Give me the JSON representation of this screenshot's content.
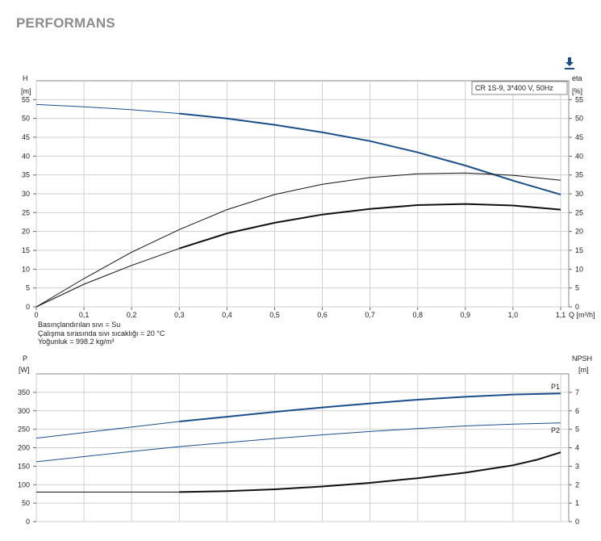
{
  "page": {
    "title": "PERFORMANS",
    "download_icon": "download-arrow-icon",
    "accent": "#1a4f8a"
  },
  "fluid_info": {
    "liquid": "Basınçlandırılan sıvı = Su",
    "temperature": "Çalışma sırasında sıvı sıcaklığı = 20 °C",
    "density": "Yoğunluk = 998.2 kg/m³"
  },
  "chart_data": [
    {
      "type": "line",
      "legend": "CR 1S-9, 3*400 V, 50Hz",
      "ylabel_left": "H",
      "yunit_left": "[m]",
      "ylabel_right": "eta",
      "yunit_right": "[%]",
      "xlabel": "Q [m³/h]",
      "xlim": [
        0,
        1.1
      ],
      "ylim": [
        0,
        60
      ],
      "xticks": [
        "0",
        "0,1",
        "0,2",
        "0,3",
        "0,4",
        "0,5",
        "0,6",
        "0,7",
        "0,8",
        "0,9",
        "1,0",
        "1,1"
      ],
      "yticks": [
        "0",
        "5",
        "10",
        "15",
        "20",
        "25",
        "30",
        "35",
        "40",
        "45",
        "50",
        "55"
      ],
      "grid": true,
      "series": [
        {
          "key": "head",
          "color": "#1a4f8a",
          "points": [
            [
              0,
              53.7
            ],
            [
              0.1,
              53.1
            ],
            [
              0.2,
              52.3
            ],
            [
              0.3,
              51.3
            ],
            [
              0.4,
              50.0
            ],
            [
              0.5,
              48.3
            ],
            [
              0.6,
              46.3
            ],
            [
              0.7,
              44.0
            ],
            [
              0.8,
              41.0
            ],
            [
              0.9,
              37.5
            ],
            [
              1.0,
              33.5
            ],
            [
              1.1,
              29.8
            ]
          ],
          "bold_from": 0.3
        },
        {
          "key": "efficiency-total",
          "color": "#111111",
          "points": [
            [
              0,
              0
            ],
            [
              0.1,
              7.5
            ],
            [
              0.2,
              14.5
            ],
            [
              0.3,
              20.5
            ],
            [
              0.4,
              25.8
            ],
            [
              0.5,
              29.8
            ],
            [
              0.6,
              32.5
            ],
            [
              0.7,
              34.3
            ],
            [
              0.8,
              35.3
            ],
            [
              0.9,
              35.5
            ],
            [
              1.0,
              34.9
            ],
            [
              1.1,
              33.6
            ]
          ],
          "bold_from": null
        },
        {
          "key": "efficiency-pump",
          "color": "#111111",
          "points": [
            [
              0,
              0
            ],
            [
              0.1,
              6.0
            ],
            [
              0.2,
              11.0
            ],
            [
              0.3,
              15.5
            ],
            [
              0.4,
              19.5
            ],
            [
              0.5,
              22.3
            ],
            [
              0.6,
              24.5
            ],
            [
              0.7,
              26.0
            ],
            [
              0.8,
              27.0
            ],
            [
              0.9,
              27.3
            ],
            [
              1.0,
              26.9
            ],
            [
              1.1,
              25.8
            ]
          ],
          "bold_from": 0.3
        }
      ]
    },
    {
      "type": "line",
      "ylabel_left": "P",
      "yunit_left": "[W]",
      "ylabel_right": "NPSH",
      "yunit_right": "[m]",
      "xlim": [
        0,
        1.1
      ],
      "ylim": [
        0,
        400
      ],
      "yticks_left": [
        "0",
        "50",
        "100",
        "150",
        "200",
        "250",
        "300",
        "350"
      ],
      "yticks_right": [
        "0",
        "1",
        "2",
        "3",
        "4",
        "5",
        "6",
        "7"
      ],
      "grid": true,
      "series": [
        {
          "name": "P1",
          "key": "power-p1",
          "color": "#1a4f8a",
          "points": [
            [
              0,
              226
            ],
            [
              0.1,
              241
            ],
            [
              0.2,
              256
            ],
            [
              0.3,
              271
            ],
            [
              0.4,
              284
            ],
            [
              0.5,
              297
            ],
            [
              0.6,
              309
            ],
            [
              0.7,
              320
            ],
            [
              0.8,
              330
            ],
            [
              0.9,
              338
            ],
            [
              1.0,
              344
            ],
            [
              1.1,
              347
            ]
          ],
          "bold_from": 0.3
        },
        {
          "name": "P2",
          "key": "power-p2",
          "color": "#1a4f8a",
          "points": [
            [
              0,
              162
            ],
            [
              0.1,
              176
            ],
            [
              0.2,
              190
            ],
            [
              0.3,
              203
            ],
            [
              0.4,
              214
            ],
            [
              0.5,
              225
            ],
            [
              0.6,
              235
            ],
            [
              0.7,
              244
            ],
            [
              0.8,
              252
            ],
            [
              0.9,
              259
            ],
            [
              1.0,
              264
            ],
            [
              1.1,
              267
            ]
          ],
          "bold_from": null
        },
        {
          "key": "npsh",
          "color": "#111111",
          "axis": "right",
          "points": [
            [
              0,
              1.6
            ],
            [
              0.1,
              1.6
            ],
            [
              0.2,
              1.6
            ],
            [
              0.3,
              1.6
            ],
            [
              0.4,
              1.65
            ],
            [
              0.5,
              1.75
            ],
            [
              0.6,
              1.9
            ],
            [
              0.7,
              2.1
            ],
            [
              0.8,
              2.35
            ],
            [
              0.9,
              2.65
            ],
            [
              1.0,
              3.05
            ],
            [
              1.05,
              3.35
            ],
            [
              1.1,
              3.75
            ]
          ],
          "bold_from": 0.3
        }
      ]
    }
  ]
}
